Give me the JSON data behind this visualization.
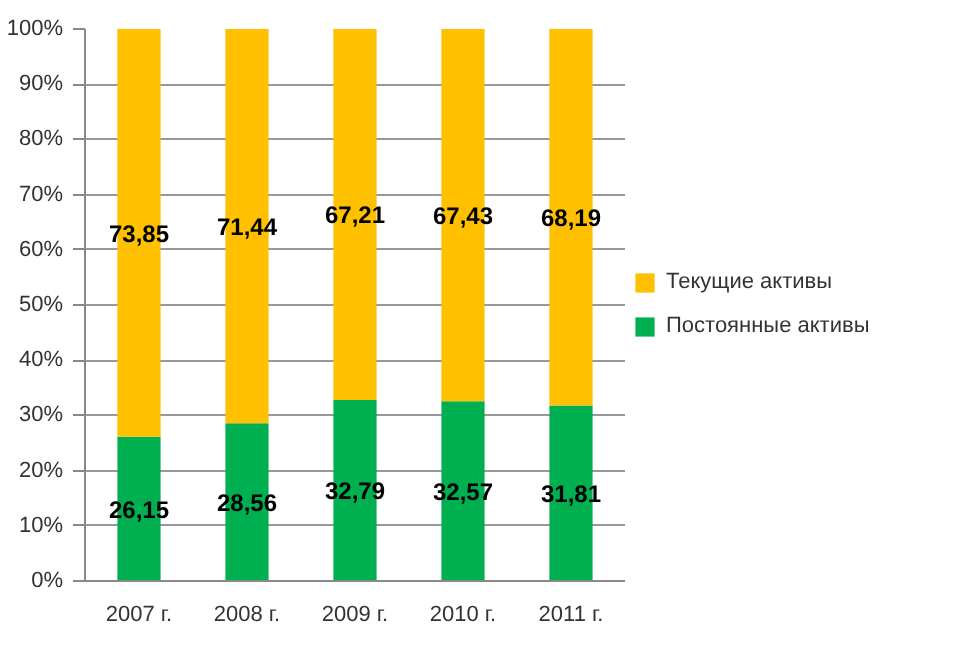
{
  "chart_data": {
    "type": "bar",
    "stacked": true,
    "categories": [
      "2007 г.",
      "2008 г.",
      "2009 г.",
      "2010 г.",
      "2011 г."
    ],
    "series": [
      {
        "name": "Постоянные активы",
        "color": "#00b050",
        "values": [
          26.15,
          28.56,
          32.79,
          32.57,
          31.81
        ],
        "value_labels": [
          "26,15",
          "28,56",
          "32,79",
          "32,57",
          "31,81"
        ]
      },
      {
        "name": "Текущие активы",
        "color": "#ffc000",
        "values": [
          73.85,
          71.44,
          67.21,
          67.43,
          68.19
        ],
        "value_labels": [
          "73,85",
          "71,44",
          "67,21",
          "67,43",
          "68,19"
        ]
      }
    ],
    "ylim": [
      0,
      100
    ],
    "yticks": [
      {
        "value": 0,
        "label": "0%"
      },
      {
        "value": 10,
        "label": "10%"
      },
      {
        "value": 20,
        "label": "20%"
      },
      {
        "value": 30,
        "label": "30%"
      },
      {
        "value": 40,
        "label": "40%"
      },
      {
        "value": 50,
        "label": "50%"
      },
      {
        "value": 60,
        "label": "60%"
      },
      {
        "value": 70,
        "label": "70%"
      },
      {
        "value": 80,
        "label": "80%"
      },
      {
        "value": 90,
        "label": "90%"
      },
      {
        "value": 100,
        "label": "100%"
      }
    ],
    "grid": "y",
    "legend": "right"
  }
}
